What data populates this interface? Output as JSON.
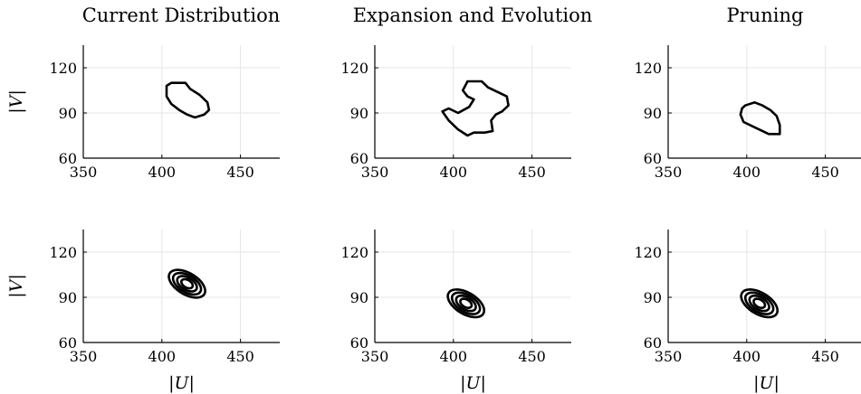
{
  "figure": {
    "column_titles": [
      "Current Distribution",
      "Expansion and Evolution",
      "Pruning"
    ],
    "xlabel": "|U|",
    "ylabel": "|V|"
  },
  "chart_data": [
    {
      "type": "contour",
      "panel": "row1-col1",
      "title": "Current Distribution",
      "xlim": [
        350,
        475
      ],
      "ylim": [
        60,
        135
      ],
      "xticks": [
        350,
        400,
        450
      ],
      "yticks": [
        60,
        90,
        120
      ],
      "xlabel": "",
      "ylabel": "|V|",
      "grid": true,
      "contours": [
        {
          "level": "outer",
          "points": [
            [
              406,
              110
            ],
            [
              415,
              110
            ],
            [
              418,
              106
            ],
            [
              424,
              102
            ],
            [
              429,
              97
            ],
            [
              430,
              92
            ],
            [
              427,
              89
            ],
            [
              421,
              87
            ],
            [
              416,
              89
            ],
            [
              411,
              92
            ],
            [
              406,
              96
            ],
            [
              403,
              101
            ],
            [
              403,
              108
            ]
          ]
        }
      ]
    },
    {
      "type": "contour",
      "panel": "row1-col2",
      "title": "Expansion and Evolution",
      "xlim": [
        350,
        475
      ],
      "ylim": [
        60,
        135
      ],
      "xticks": [
        350,
        400,
        450
      ],
      "yticks": [
        60,
        90,
        120
      ],
      "xlabel": "",
      "ylabel": "",
      "grid": true,
      "contours": [
        {
          "level": "outer",
          "points": [
            [
              409,
              111
            ],
            [
              418,
              111
            ],
            [
              422,
              107
            ],
            [
              428,
              104
            ],
            [
              434,
              101
            ],
            [
              435,
              95
            ],
            [
              431,
              91
            ],
            [
              427,
              89
            ],
            [
              424,
              85
            ],
            [
              425,
              78
            ],
            [
              420,
              77
            ],
            [
              413,
              77
            ],
            [
              409,
              75
            ],
            [
              403,
              79
            ],
            [
              397,
              85
            ],
            [
              393,
              91
            ],
            [
              397,
              93
            ],
            [
              403,
              90
            ],
            [
              410,
              94
            ],
            [
              413,
              99
            ],
            [
              409,
              101
            ],
            [
              406,
              105
            ],
            [
              408,
              109
            ]
          ]
        }
      ]
    },
    {
      "type": "contour",
      "panel": "row1-col3",
      "title": "Pruning",
      "xlim": [
        350,
        475
      ],
      "ylim": [
        60,
        135
      ],
      "xticks": [
        350,
        400,
        450
      ],
      "yticks": [
        60,
        90,
        120
      ],
      "xlabel": "",
      "ylabel": "",
      "grid": true,
      "contours": [
        {
          "level": "outer",
          "points": [
            [
              399,
              95
            ],
            [
              405,
              97
            ],
            [
              410,
              95
            ],
            [
              415,
              92
            ],
            [
              419,
              88
            ],
            [
              421,
              82
            ],
            [
              421,
              76
            ],
            [
              414,
              76
            ],
            [
              406,
              80
            ],
            [
              398,
              84
            ],
            [
              396,
              89
            ],
            [
              397,
              93
            ]
          ]
        }
      ]
    },
    {
      "type": "contour",
      "panel": "row2-col1",
      "title": "",
      "xlim": [
        350,
        475
      ],
      "ylim": [
        60,
        135
      ],
      "xticks": [
        350,
        400,
        450
      ],
      "yticks": [
        60,
        90,
        120
      ],
      "xlabel": "|U|",
      "ylabel": "|V|",
      "grid": true,
      "contours": [
        {
          "cx": 416,
          "cy": 99,
          "rx": 13,
          "ry": 7,
          "angle": -33
        },
        {
          "cx": 416,
          "cy": 99,
          "rx": 10,
          "ry": 5.5,
          "angle": -33
        },
        {
          "cx": 416,
          "cy": 99,
          "rx": 7,
          "ry": 4,
          "angle": -33
        },
        {
          "cx": 416,
          "cy": 99,
          "rx": 4,
          "ry": 2.5,
          "angle": -33
        }
      ]
    },
    {
      "type": "contour",
      "panel": "row2-col2",
      "title": "",
      "xlim": [
        350,
        475
      ],
      "ylim": [
        60,
        135
      ],
      "xticks": [
        350,
        400,
        450
      ],
      "yticks": [
        60,
        90,
        120
      ],
      "xlabel": "|U|",
      "ylabel": "",
      "grid": true,
      "contours": [
        {
          "cx": 408,
          "cy": 86,
          "rx": 13,
          "ry": 7,
          "angle": -33
        },
        {
          "cx": 408,
          "cy": 86,
          "rx": 10,
          "ry": 5.5,
          "angle": -33
        },
        {
          "cx": 408,
          "cy": 86,
          "rx": 7,
          "ry": 4,
          "angle": -33
        },
        {
          "cx": 408,
          "cy": 86,
          "rx": 4,
          "ry": 2.5,
          "angle": -33
        }
      ]
    },
    {
      "type": "contour",
      "panel": "row2-col3",
      "title": "",
      "xlim": [
        350,
        475
      ],
      "ylim": [
        60,
        135
      ],
      "xticks": [
        350,
        400,
        450
      ],
      "yticks": [
        60,
        90,
        120
      ],
      "xlabel": "|U|",
      "ylabel": "",
      "grid": true,
      "contours": [
        {
          "cx": 408,
          "cy": 86,
          "rx": 13,
          "ry": 7,
          "angle": -33
        },
        {
          "cx": 408,
          "cy": 86,
          "rx": 10,
          "ry": 5.5,
          "angle": -33
        },
        {
          "cx": 408,
          "cy": 86,
          "rx": 7,
          "ry": 4,
          "angle": -33
        },
        {
          "cx": 408,
          "cy": 86,
          "rx": 4,
          "ry": 2.5,
          "angle": -33
        }
      ]
    }
  ]
}
